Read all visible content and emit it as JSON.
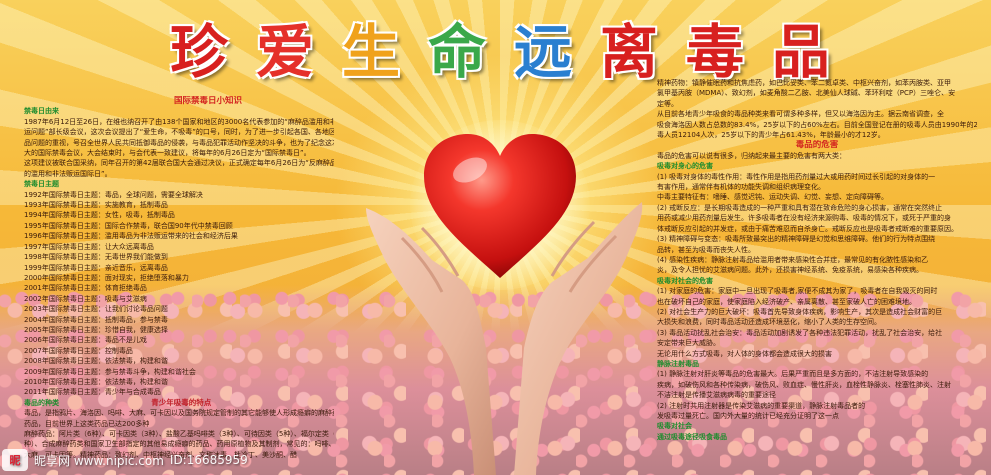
{
  "title": {
    "chars": [
      "珍",
      "爱",
      "生",
      "命",
      "远",
      "离",
      "毒",
      "品"
    ],
    "colors": [
      "#d8201f",
      "#e5302a",
      "#f0a21c",
      "#3aa84a",
      "#2a7fd0",
      "#d8201f",
      "#d8201f",
      "#d8201f"
    ]
  },
  "left": {
    "heading": "国际禁毒日小知识",
    "section1": "禁毒日由来",
    "intro": [
      "1987年6月12日至26日，在维也纳召开了由138个国家和地区的3000名代表参加的“麻醉品滥用和非法贩",
      "运问题”部长级会议，这次会议提出了“爱生命，不吸毒”的口号，同时，为了进一步引起各国、各地区对毒",
      "品问题的重视，号召全世界人民共同抵御毒品的侵袭，与毒品犯罪活动作坚决的斗争，也为了纪念这次意义重",
      "大的国际禁毒会议，大会结束时，与会代表一致建议，将每年的6月26日定为“国际禁毒日”。",
      "这项建议被联合国采纳，同年召开的第42届联合国大会通过决议，正式确定每年6月26日为“反麻醉品",
      "的滥用和非法贩运国际日”。"
    ],
    "section2": "禁毒日主题",
    "themes": [
      "1992年国际禁毒日主题：毒品，全球问题，需要全球解决",
      "1993年国际禁毒日主题：实施教育，抵制毒品",
      "1994年国际禁毒日主题：女性，吸毒，抵制毒品",
      "1995年国际禁毒日主题：国际合作禁毒，联合国90年代中禁毒回顾",
      "1996年国际禁毒日主题：滥用毒品为非法贩运带来的社会和经济后果",
      "1997年国际禁毒日主题：让大众远离毒品",
      "1998年国际禁毒日主题：无毒世界我们能做到",
      "1999年国际禁毒日主题：亲近音乐，远离毒品",
      "2000年国际禁毒日主题：面对现实，拒绝堕落和暴力",
      "2001年国际禁毒日主题：体育拒绝毒品",
      "2002年国际禁毒日主题：吸毒与艾滋病",
      "2003年国际禁毒日主题：让我们讨论毒品问题",
      "2004年国际禁毒日主题：抵制毒品，参与禁毒",
      "2005年国际禁毒日主题：珍惜自我，健康选择",
      "2006年国际禁毒日主题：毒品不是儿戏",
      "2007年国际禁毒日主题：控制毒品",
      "2008年国际禁毒日主题：依法禁毒，构建和谐",
      "2009年国际禁毒日主题：参与禁毒斗争，构建和谐社会",
      "2010年国际禁毒日主题：依法禁毒，构建和谐",
      "2011年国际禁毒日主题：青少年与合成毒品"
    ],
    "section3": "毒品的种类",
    "section3_note": "青少年吸毒的特点",
    "types": [
      "毒品，是指鸦片、海洛因、吗啡、大麻、可卡因以及国务院规定管制的其它能够使人形成瘾癖的麻醉药品和精神",
      "药品，目前世界上这类药品已达200多种",
      "麻醉药品：阿片类（6种）、可卡因类（3种）、盐酸乙基吗啡类（3种）、可待因类（5种）、福尔定类（2",
      "种）、合成麻醉药类和国家卫生部指定的其他易成瘾癖的药品、药用原植物及其制剂，常见的：吗啡、海洛因",
      "大麻、可卡因等。精神药品：致幻剂、中枢神经兴奋剂、文称冰毒、杜冷丁、美沙酮、醋"
    ]
  },
  "right": {
    "top": [
      "精神药物：镇静催眠药和抗焦虑药，如巴比妥类、苯二氮卓类、中枢兴奋剂，如苯丙胺类、亚甲",
      "氯甲基丙胺（MDMA）、致幻剂，如麦角酸二乙胺、北美仙人球碱、苯环利啶（PCP）三唑仑、安",
      "定等。",
      "从目前各地青少年吸食的毒品种类来看可谓多种多样，但又以海洛因为主。据云南省调查，全",
      "吸食海洛因人数占总数的83.4%，25岁以下的占60%左右。目前全国登记在册的吸毒人员由1990年的2月至1995年12月共收治",
      "毒人员12104人次，25岁以下的青少年占61.43%，年龄最小的才12岁。"
    ],
    "harm_title": "毒品的危害",
    "harm_intro": "毒品的危害可以说有很多，归纳起来最主要的危害有两大类：",
    "s1": "吸毒对身心的危害",
    "body": [
      "(1) 吸毒对身体的毒性作用：毒性作用是指用药剂量过大或用药时间过长引起的对身体的一",
      "有害作用，通常伴有机体的功能失调和组织病理变化。",
      "中毒主要特征有：嗜睡、感觉迟钝、运动失调、幻觉、妄想、定向障碍等。",
      "(2) 戒断反应：是长期吸毒造成的一种严重和具有潜在致命危险的身心损害，通常在突然终止",
      "用药或减少用药剂量后发生。许多吸毒者在没有经济来源购毒、吸毒的情况下，或死于严重的身",
      "体戒断反应引起的并发症，或由于痛苦难忍而自杀身亡。戒断反应也是吸毒者戒断难的重要原因。",
      "(3) 精神障碍与变态：吸毒所致最突出的精神障碍是幻觉和思维障碍。他们的行为特点围绕",
      "品转，甚至为吸毒而丧失人性。",
      "(4) 感染性疾病：静脉注射毒品给滥用者带来感染性合并症，最常见的有化脓性感染和乙",
      "炎，及令人担忧的艾滋病问题。此外，还损害神经系统、免疫系统，易感染各种疾病。"
    ],
    "s2": "吸毒对社会的危害",
    "body2": [
      "(1) 对家庭的危害：家庭中一旦出现了吸毒者,家便不成其为家了，吸毒者在自我毁灭的同时",
      "也在破坏自己的家庭，使家庭陷入经济破产、亲属离散、甚至家破人亡的困难境地。",
      "(2) 对社会生产力的巨大破坏：吸毒首先导致身体疾病，影响生产，其次是造成社会财富的巨",
      "大损失和浪费，同时毒品活动还造成环境恶化，缩小了人类的生存空间。",
      "(3) 毒品活动扰乱社会治安：毒品活动加剧诱发了各种违法犯罪活动，扰乱了社会治安，给社",
      "安定带来巨大威胁。",
      "无论用什么方式吸毒，对人体的身体都会造成很大的损害"
    ],
    "s3": "静脉注射毒品",
    "body3": [
      "(1) 静脉注射对肝炎等毒品的危害最大。后果严重而且是多方面的，不洁注射导致感染的",
      "疾病，如破伤风和各种传染病，破伤风、败血症、慢性肝炎，血栓性静脉炎、栓塞性肺炎、注射",
      "不洁注射是传播艾滋病病毒的重要途径",
      "(2) 注射时共用注射器是传染艾滋病的重要渠道，静脉注射毒品者的",
      "发吸毒过量死亡。国内外大量的统计已经充分证明了这一点"
    ],
    "s4": "吸毒对社会",
    "s5": "通过吸毒途径吸食毒品"
  },
  "watermark": {
    "logo": "昵",
    "text": "昵享网 www.nipic.com",
    "id": "ID:16685959"
  }
}
